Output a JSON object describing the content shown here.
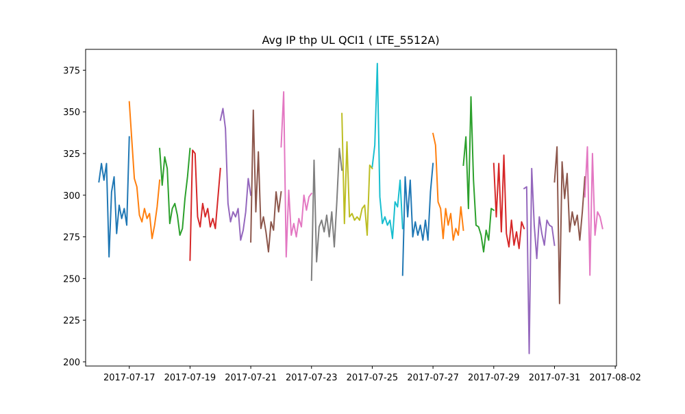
{
  "chart_data": {
    "type": "line",
    "title": "Avg IP thp UL QCI1 ( LTE_5512A)",
    "xlabel": "",
    "ylabel": "",
    "x_type": "datetime",
    "xlim": [
      "2017-07-15 13:30",
      "2017-08-02 01:00"
    ],
    "ylim": [
      197.5,
      387.5
    ],
    "yticks": [
      200,
      225,
      250,
      275,
      300,
      325,
      350,
      375
    ],
    "xticks": [
      "2017-07-17",
      "2017-07-19",
      "2017-07-21",
      "2017-07-23",
      "2017-07-25",
      "2017-07-27",
      "2017-07-29",
      "2017-07-31",
      "2017-08-02"
    ],
    "grid": false,
    "legend": "none",
    "colors": [
      "#1f77b4",
      "#ff7f0e",
      "#2ca02c",
      "#d62728",
      "#9467bd",
      "#8c564b",
      "#e377c2",
      "#7f7f7f",
      "#bcbd22",
      "#17becf"
    ],
    "series": [
      {
        "x": [
          "2017-07-16 00:00",
          "2017-07-16 02:00",
          "2017-07-16 04:00",
          "2017-07-16 06:00",
          "2017-07-16 08:00",
          "2017-07-16 10:00",
          "2017-07-16 12:00",
          "2017-07-16 14:00",
          "2017-07-16 16:00",
          "2017-07-16 18:00",
          "2017-07-16 20:00",
          "2017-07-16 22:00",
          "2017-07-17 00:00"
        ],
        "y": [
          308,
          319,
          309,
          319,
          263,
          302,
          311,
          277,
          294,
          286,
          292,
          282,
          335
        ]
      },
      {
        "x": [
          "2017-07-17 00:00",
          "2017-07-17 02:00",
          "2017-07-17 04:00",
          "2017-07-17 06:00",
          "2017-07-17 08:00",
          "2017-07-17 10:00",
          "2017-07-17 12:00",
          "2017-07-17 14:00",
          "2017-07-17 16:00",
          "2017-07-17 18:00",
          "2017-07-17 20:00",
          "2017-07-17 22:00",
          "2017-07-18 00:00"
        ],
        "y": [
          356,
          333,
          310,
          305,
          288,
          284,
          292,
          286,
          289,
          274,
          282,
          293,
          309
        ]
      },
      {
        "x": [
          "2017-07-18 00:00",
          "2017-07-18 02:00",
          "2017-07-18 04:00",
          "2017-07-18 06:00",
          "2017-07-18 08:00",
          "2017-07-18 10:00",
          "2017-07-18 12:00",
          "2017-07-18 14:00",
          "2017-07-18 16:00",
          "2017-07-18 18:00",
          "2017-07-18 20:00",
          "2017-07-18 22:00",
          "2017-07-19 00:00"
        ],
        "y": [
          328,
          306,
          323,
          316,
          283,
          292,
          295,
          288,
          276,
          280,
          298,
          311,
          328
        ]
      },
      {
        "x": [
          "2017-07-19 00:00",
          "2017-07-19 02:00",
          "2017-07-19 04:00",
          "2017-07-19 06:00",
          "2017-07-19 08:00",
          "2017-07-19 10:00",
          "2017-07-19 12:00",
          "2017-07-19 14:00",
          "2017-07-19 16:00",
          "2017-07-19 18:00",
          "2017-07-19 20:00",
          "2017-07-19 22:00",
          "2017-07-20 00:00"
        ],
        "y": [
          261,
          327,
          325,
          287,
          281,
          295,
          287,
          292,
          281,
          286,
          280,
          298,
          316
        ]
      },
      {
        "x": [
          "2017-07-20 00:00",
          "2017-07-20 02:00",
          "2017-07-20 04:00",
          "2017-07-20 06:00",
          "2017-07-20 08:00",
          "2017-07-20 10:00",
          "2017-07-20 12:00",
          "2017-07-20 14:00",
          "2017-07-20 16:00",
          "2017-07-20 18:00",
          "2017-07-20 20:00",
          "2017-07-20 22:00",
          "2017-07-21 00:00"
        ],
        "y": [
          345,
          352,
          340,
          295,
          284,
          290,
          287,
          292,
          273,
          279,
          290,
          310,
          300
        ]
      },
      {
        "x": [
          "2017-07-21 00:00",
          "2017-07-21 02:00",
          "2017-07-21 04:00",
          "2017-07-21 06:00",
          "2017-07-21 08:00",
          "2017-07-21 10:00",
          "2017-07-21 12:00",
          "2017-07-21 14:00",
          "2017-07-21 16:00",
          "2017-07-21 18:00",
          "2017-07-21 20:00",
          "2017-07-21 22:00",
          "2017-07-22 00:00"
        ],
        "y": [
          272,
          351,
          290,
          326,
          280,
          287,
          278,
          266,
          284,
          279,
          302,
          290,
          302
        ]
      },
      {
        "x": [
          "2017-07-22 00:00",
          "2017-07-22 02:00",
          "2017-07-22 04:00",
          "2017-07-22 06:00",
          "2017-07-22 08:00",
          "2017-07-22 10:00",
          "2017-07-22 12:00",
          "2017-07-22 14:00",
          "2017-07-22 16:00",
          "2017-07-22 18:00",
          "2017-07-22 20:00",
          "2017-07-22 22:00",
          "2017-07-23 00:00"
        ],
        "y": [
          329,
          362,
          263,
          303,
          276,
          283,
          275,
          286,
          281,
          300,
          291,
          299,
          301
        ]
      },
      {
        "x": [
          "2017-07-23 00:00",
          "2017-07-23 02:00",
          "2017-07-23 04:00",
          "2017-07-23 06:00",
          "2017-07-23 08:00",
          "2017-07-23 10:00",
          "2017-07-23 12:00",
          "2017-07-23 14:00",
          "2017-07-23 16:00",
          "2017-07-23 18:00",
          "2017-07-23 20:00",
          "2017-07-23 22:00",
          "2017-07-24 00:00"
        ],
        "y": [
          249,
          321,
          260,
          281,
          285,
          278,
          288,
          275,
          290,
          269,
          296,
          328,
          315
        ]
      },
      {
        "x": [
          "2017-07-24 00:00",
          "2017-07-24 02:00",
          "2017-07-24 04:00",
          "2017-07-24 06:00",
          "2017-07-24 08:00",
          "2017-07-24 10:00",
          "2017-07-24 12:00",
          "2017-07-24 14:00",
          "2017-07-24 16:00",
          "2017-07-24 18:00",
          "2017-07-24 20:00",
          "2017-07-24 22:00",
          "2017-07-25 00:00"
        ],
        "y": [
          349,
          283,
          332,
          287,
          289,
          285,
          287,
          285,
          292,
          294,
          276,
          318,
          316
        ]
      },
      {
        "x": [
          "2017-07-25 00:00",
          "2017-07-25 02:00",
          "2017-07-25 04:00",
          "2017-07-25 06:00",
          "2017-07-25 08:00",
          "2017-07-25 10:00",
          "2017-07-25 12:00",
          "2017-07-25 14:00",
          "2017-07-25 16:00",
          "2017-07-25 18:00",
          "2017-07-25 20:00",
          "2017-07-25 22:00",
          "2017-07-26 00:00"
        ],
        "y": [
          317,
          330,
          379,
          299,
          283,
          287,
          282,
          285,
          274,
          296,
          293,
          309,
          280
        ]
      },
      {
        "x": [
          "2017-07-26 00:00",
          "2017-07-26 02:00",
          "2017-07-26 04:00",
          "2017-07-26 06:00",
          "2017-07-26 08:00",
          "2017-07-26 10:00",
          "2017-07-26 12:00",
          "2017-07-26 14:00",
          "2017-07-26 16:00",
          "2017-07-26 18:00",
          "2017-07-26 20:00",
          "2017-07-26 22:00",
          "2017-07-27 00:00"
        ],
        "y": [
          252,
          311,
          287,
          309,
          275,
          284,
          276,
          282,
          273,
          285,
          273,
          302,
          319
        ]
      },
      {
        "x": [
          "2017-07-27 00:00",
          "2017-07-27 02:00",
          "2017-07-27 04:00",
          "2017-07-27 06:00",
          "2017-07-27 08:00",
          "2017-07-27 10:00",
          "2017-07-27 12:00",
          "2017-07-27 14:00",
          "2017-07-27 16:00",
          "2017-07-27 18:00",
          "2017-07-27 20:00",
          "2017-07-27 22:00",
          "2017-07-28 00:00"
        ],
        "y": [
          337,
          330,
          296,
          292,
          274,
          292,
          282,
          289,
          273,
          280,
          276,
          293,
          279
        ]
      },
      {
        "x": [
          "2017-07-28 00:00",
          "2017-07-28 02:00",
          "2017-07-28 04:00",
          "2017-07-28 06:00",
          "2017-07-28 08:00",
          "2017-07-28 10:00",
          "2017-07-28 12:00",
          "2017-07-28 14:00",
          "2017-07-28 16:00",
          "2017-07-28 18:00",
          "2017-07-28 20:00",
          "2017-07-28 22:00",
          "2017-07-29 00:00"
        ],
        "y": [
          318,
          335,
          292,
          359,
          309,
          282,
          281,
          276,
          266,
          279,
          273,
          292,
          291
        ]
      },
      {
        "x": [
          "2017-07-29 00:00",
          "2017-07-29 02:00",
          "2017-07-29 04:00",
          "2017-07-29 06:00",
          "2017-07-29 08:00",
          "2017-07-29 10:00",
          "2017-07-29 12:00",
          "2017-07-29 14:00",
          "2017-07-29 16:00",
          "2017-07-29 18:00",
          "2017-07-29 20:00",
          "2017-07-29 22:00",
          "2017-07-30 00:00"
        ],
        "y": [
          319,
          287,
          319,
          278,
          324,
          277,
          269,
          285,
          270,
          278,
          268,
          284,
          280
        ]
      },
      {
        "x": [
          "2017-07-30 00:00",
          "2017-07-30 02:00",
          "2017-07-30 04:00",
          "2017-07-30 06:00",
          "2017-07-30 08:00",
          "2017-07-30 10:00",
          "2017-07-30 12:00",
          "2017-07-30 14:00",
          "2017-07-30 16:00",
          "2017-07-30 18:00",
          "2017-07-30 20:00",
          "2017-07-30 22:00",
          "2017-07-31 00:00"
        ],
        "y": [
          304,
          305,
          205,
          316,
          282,
          262,
          287,
          277,
          270,
          285,
          282,
          281,
          270
        ]
      },
      {
        "x": [
          "2017-07-31 00:00",
          "2017-07-31 02:00",
          "2017-07-31 04:00",
          "2017-07-31 06:00",
          "2017-07-31 08:00",
          "2017-07-31 10:00",
          "2017-07-31 12:00",
          "2017-07-31 14:00",
          "2017-07-31 16:00",
          "2017-07-31 18:00",
          "2017-07-31 20:00",
          "2017-07-31 22:00",
          "2017-08-01 00:00"
        ],
        "y": [
          308,
          329,
          235,
          320,
          298,
          313,
          278,
          290,
          282,
          288,
          273,
          290,
          311
        ]
      },
      {
        "x": [
          "2017-08-01 00:00",
          "2017-08-01 02:00",
          "2017-08-01 04:00",
          "2017-08-01 06:00",
          "2017-08-01 08:00",
          "2017-08-01 10:00",
          "2017-08-01 12:00",
          "2017-08-01 14:00"
        ],
        "y": [
          299,
          329,
          252,
          325,
          276,
          290,
          287,
          280
        ]
      }
    ]
  }
}
